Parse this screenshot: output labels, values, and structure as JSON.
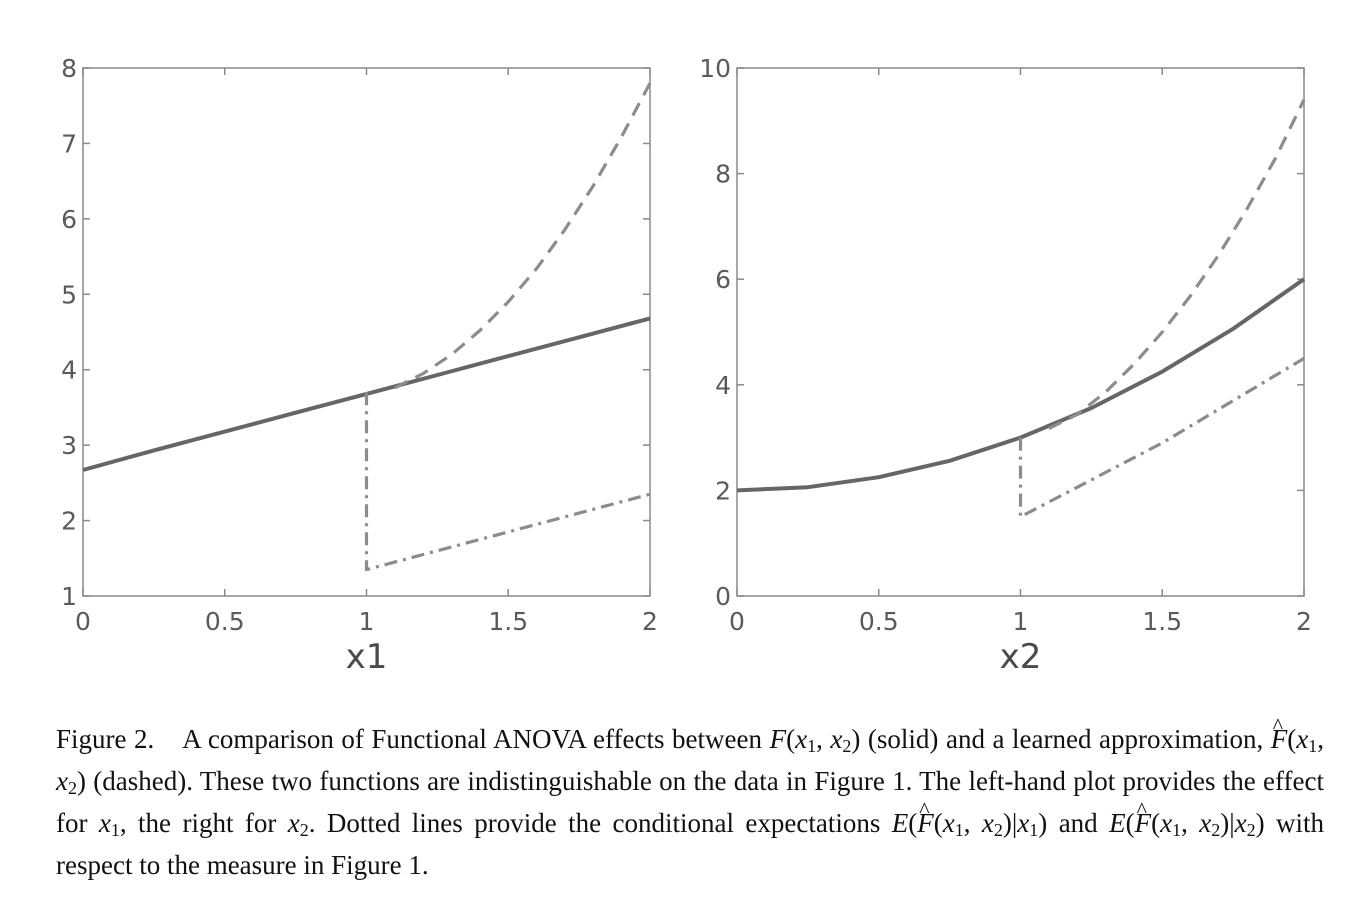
{
  "chart_data": [
    {
      "type": "line",
      "xlabel": "x1",
      "ylabel": "",
      "xlim": [
        0,
        2
      ],
      "ylim": [
        1,
        8
      ],
      "xticks": [
        0,
        0.5,
        1,
        1.5,
        2
      ],
      "xtick_labels": [
        "0",
        "0.5",
        "1",
        "1.5",
        "2"
      ],
      "yticks": [
        1,
        2,
        3,
        4,
        5,
        6,
        7,
        8
      ],
      "ytick_labels": [
        "1",
        "2",
        "3",
        "4",
        "5",
        "6",
        "7",
        "8"
      ],
      "grid": false,
      "series": [
        {
          "style": "solid",
          "x": [
            0,
            0.25,
            0.5,
            0.75,
            1,
            1.25,
            1.5,
            1.75,
            2
          ],
          "y": [
            2.67,
            2.93,
            3.18,
            3.43,
            3.68,
            3.93,
            4.18,
            4.43,
            4.68
          ]
        },
        {
          "style": "dashed",
          "x": [
            1.1,
            1.2,
            1.3,
            1.4,
            1.5,
            1.6,
            1.7,
            1.8,
            1.9,
            2.0
          ],
          "y": [
            3.76,
            3.95,
            4.2,
            4.52,
            4.9,
            5.34,
            5.86,
            6.44,
            7.09,
            7.8
          ]
        },
        {
          "style": "dashdot",
          "x": [
            1,
            1,
            1,
            1.5,
            2
          ],
          "y": [
            3.7,
            2.0,
            1.35,
            1.85,
            2.35
          ]
        }
      ]
    },
    {
      "type": "line",
      "xlabel": "x2",
      "ylabel": "",
      "xlim": [
        0,
        2
      ],
      "ylim": [
        0,
        10
      ],
      "xticks": [
        0,
        0.5,
        1,
        1.5,
        2
      ],
      "xtick_labels": [
        "0",
        "0.5",
        "1",
        "1.5",
        "2"
      ],
      "yticks": [
        0,
        2,
        4,
        6,
        8,
        10
      ],
      "ytick_labels": [
        "0",
        "2",
        "4",
        "6",
        "8",
        "10"
      ],
      "grid": false,
      "series": [
        {
          "style": "solid",
          "x": [
            0,
            0.25,
            0.5,
            0.75,
            1,
            1.25,
            1.5,
            1.75,
            2
          ],
          "y": [
            2.0,
            2.06,
            2.25,
            2.56,
            3.0,
            3.56,
            4.25,
            5.06,
            6.0
          ]
        },
        {
          "style": "dashed",
          "x": [
            1.1,
            1.2,
            1.3,
            1.4,
            1.5,
            1.6,
            1.7,
            1.8,
            1.9,
            2.0
          ],
          "y": [
            3.17,
            3.44,
            3.86,
            4.39,
            5.0,
            5.69,
            6.47,
            7.34,
            8.3,
            9.4
          ]
        },
        {
          "style": "dashdot",
          "x": [
            1,
            1,
            1,
            1.5,
            2
          ],
          "y": [
            3.0,
            2.2,
            1.5,
            2.9,
            4.5
          ]
        }
      ]
    }
  ],
  "caption": {
    "figure_label": "Figure 2.",
    "t1": "A comparison of Functional ANOVA effects between",
    "f": "F",
    "args_open": "(",
    "x": "x",
    "one": "1",
    "comma": ", ",
    "two": "2",
    "args_close": ")",
    "t2": " (solid) and a learned approximation,",
    "t3": " (dashed). These two functions are indistinguishable on the data in Figure 1. The left-hand plot provides the effect for",
    "t4": ", the right for",
    "t5": ". Dotted lines provide the conditional expectations",
    "e": "E",
    "bar": "|",
    "t6": " and",
    "t7": " with respect to the measure in Figure 1."
  }
}
